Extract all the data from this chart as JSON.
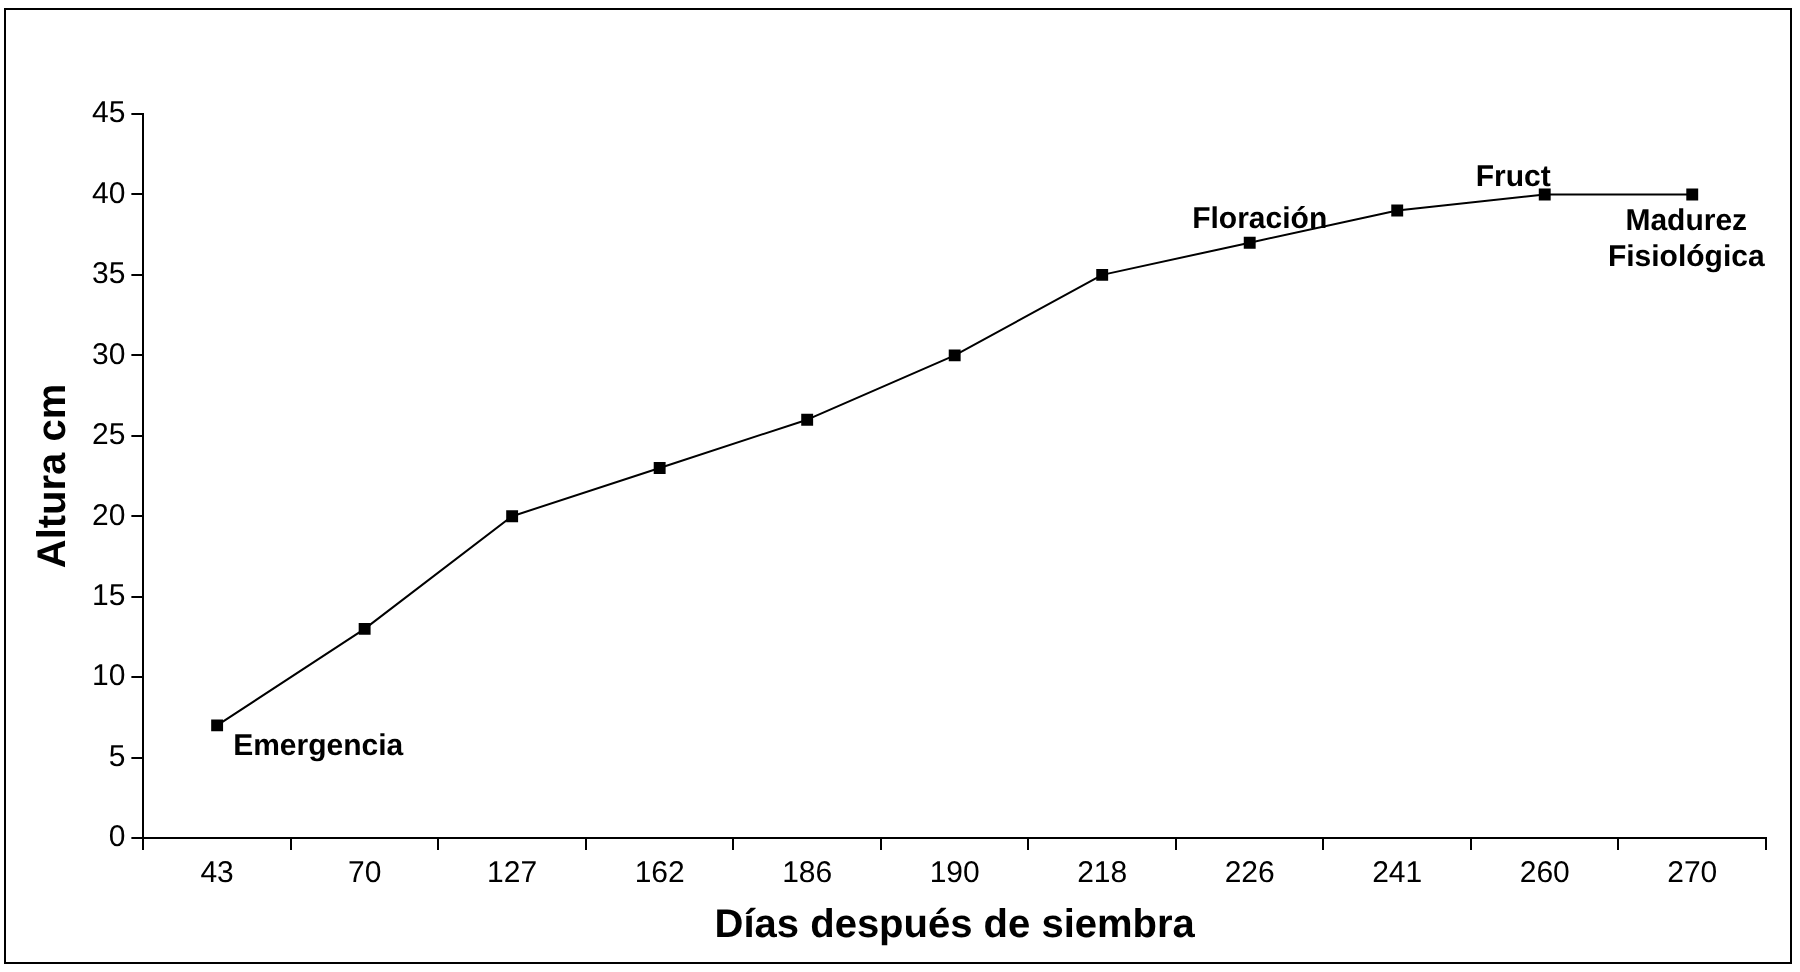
{
  "chart_data": {
    "type": "line",
    "xlabel": "Días después de siembra",
    "ylabel": "Altura cm",
    "categories": [
      "43",
      "70",
      "127",
      "162",
      "186",
      "190",
      "218",
      "226",
      "241",
      "260",
      "270"
    ],
    "series": [
      {
        "color": "#000000",
        "values": [
          7,
          13,
          20,
          23,
          26,
          30,
          35,
          37,
          39,
          40,
          40
        ]
      }
    ],
    "ylim": [
      0,
      45
    ],
    "yticks": [
      0,
      5,
      10,
      15,
      20,
      25,
      30,
      35,
      40,
      45
    ],
    "grid": false,
    "legend": false,
    "marker": "square",
    "line_style": "solid",
    "annotations": [
      {
        "text": "Emergencia",
        "x": "43",
        "y": 7
      },
      {
        "text": "Floración",
        "x": "226",
        "y": 37
      },
      {
        "text": "Fruct",
        "x": "260",
        "y": 40
      },
      {
        "text": "Madurez Fisiológica",
        "x": "270",
        "y": 40
      }
    ]
  }
}
